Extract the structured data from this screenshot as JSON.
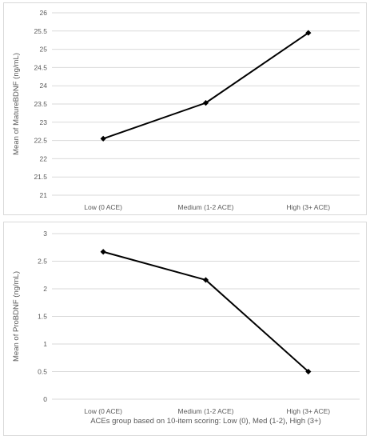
{
  "chart_data": [
    {
      "type": "line",
      "ylabel": "Mean of MatureBDNF (ng/mL)",
      "xlabel": "",
      "categories": [
        "Low (0 ACE)",
        "Medium (1-2 ACE)",
        "High (3+ ACE)"
      ],
      "values": [
        22.55,
        23.53,
        25.45
      ],
      "ylim": [
        21,
        26
      ],
      "yticks": [
        "21",
        "21.5",
        "22",
        "22.5",
        "23",
        "23.5",
        "24",
        "24.5",
        "25",
        "25.5",
        "26"
      ],
      "grid": true,
      "marker": "diamond",
      "color": "#000000"
    },
    {
      "type": "line",
      "ylabel": "Mean of ProBDNF (ng/mL)",
      "xlabel": "ACEs group based on 10-item scoring: Low (0), Med (1-2), High (3+)",
      "categories": [
        "Low (0 ACE)",
        "Medium (1-2 ACE)",
        "High (3+ ACE)"
      ],
      "values": [
        2.67,
        2.16,
        0.5
      ],
      "ylim": [
        0,
        3
      ],
      "yticks": [
        "0",
        "0.5",
        "1",
        "1.5",
        "2",
        "2.5",
        "3"
      ],
      "grid": true,
      "marker": "diamond",
      "color": "#000000"
    }
  ]
}
